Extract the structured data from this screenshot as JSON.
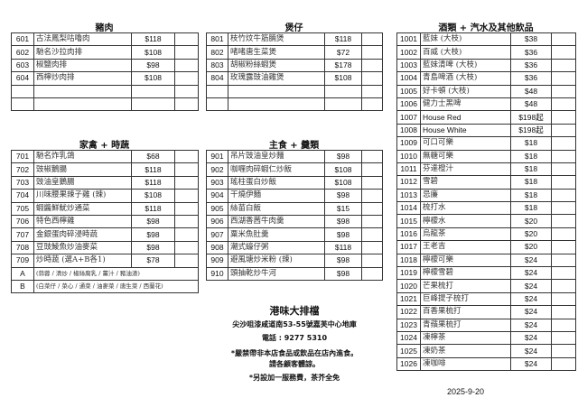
{
  "sections": [
    {
      "title": "豬肉",
      "items": [
        {
          "code": "601",
          "name": "古法鳳梨咕嚕肉",
          "price": "$118"
        },
        {
          "code": "602",
          "name": "馳名沙拉肉排",
          "price": "$108"
        },
        {
          "code": "603",
          "name": "椒鹽肉排",
          "price": "$98"
        },
        {
          "code": "604",
          "name": "西檸炒肉排",
          "price": "$108"
        },
        {
          "code": "",
          "name": "",
          "price": ""
        },
        {
          "code": "",
          "name": "",
          "price": ""
        }
      ]
    },
    {
      "title": "煲仔",
      "items": [
        {
          "code": "801",
          "name": "枝竹炆牛筋腩煲",
          "price": "$118"
        },
        {
          "code": "802",
          "name": "啫啫唐生菜煲",
          "price": "$72"
        },
        {
          "code": "803",
          "name": "胡椒粉絲蝦煲",
          "price": "$178"
        },
        {
          "code": "804",
          "name": "玫瑰露豉油雞煲",
          "price": "$108"
        },
        {
          "code": "",
          "name": "",
          "price": ""
        },
        {
          "code": "",
          "name": "",
          "price": ""
        }
      ]
    },
    {
      "title": "酒類 + 汽水及其他飲品",
      "items": [
        {
          "code": "1001",
          "name": "藍妹 (大枝)",
          "price": "$38"
        },
        {
          "code": "1002",
          "name": "百威 (大枝)",
          "price": "$36"
        },
        {
          "code": "1003",
          "name": "藍妹清啤 (大枝)",
          "price": "$36"
        },
        {
          "code": "1004",
          "name": "青島啤酒 (大枝)",
          "price": "$36"
        },
        {
          "code": "1005",
          "name": "好卡頓 (大枝)",
          "price": "$48"
        },
        {
          "code": "1006",
          "name": "健力士黑啤",
          "price": "$48"
        },
        {
          "code": "1007",
          "name": "House Red",
          "price": "$198起"
        },
        {
          "code": "1008",
          "name": "House White",
          "price": "$198起"
        },
        {
          "code": "1009",
          "name": "可口可樂",
          "price": "$18"
        },
        {
          "code": "1010",
          "name": "無糖可樂",
          "price": "$18"
        },
        {
          "code": "1011",
          "name": "芬達橙汁",
          "price": "$18"
        },
        {
          "code": "1012",
          "name": "雪碧",
          "price": "$18"
        },
        {
          "code": "1013",
          "name": "忌廉",
          "price": "$18"
        },
        {
          "code": "1014",
          "name": "梳打水",
          "price": "$18"
        },
        {
          "code": "1015",
          "name": "檸檬水",
          "price": "$20"
        },
        {
          "code": "1016",
          "name": "烏龍茶",
          "price": "$20"
        },
        {
          "code": "1017",
          "name": "王老吉",
          "price": "$20"
        },
        {
          "code": "1018",
          "name": "檸檬可樂",
          "price": "$24"
        },
        {
          "code": "1019",
          "name": "檸檬雪碧",
          "price": "$24"
        },
        {
          "code": "1020",
          "name": "芒果梳打",
          "price": "$24"
        },
        {
          "code": "1021",
          "name": "巨峰提子梳打",
          "price": "$24"
        },
        {
          "code": "1022",
          "name": "百香果梳打",
          "price": "$24"
        },
        {
          "code": "1023",
          "name": "青蘋果梳打",
          "price": "$24"
        },
        {
          "code": "1024",
          "name": "凍檸茶",
          "price": "$24"
        },
        {
          "code": "1025",
          "name": "凍奶茶",
          "price": "$24"
        },
        {
          "code": "1026",
          "name": "凍咖啡",
          "price": "$24"
        }
      ]
    },
    {
      "title": "家禽 + 時蔬",
      "items": [
        {
          "code": "701",
          "name": "馳名炸乳鴿",
          "price": "$68"
        },
        {
          "code": "702",
          "name": "豉椒鵝腸",
          "price": "$118"
        },
        {
          "code": "703",
          "name": "豉油皇鵝腸",
          "price": "$118"
        },
        {
          "code": "704",
          "name": "川味腰果辣子雞 (辣)",
          "price": "$108"
        },
        {
          "code": "705",
          "name": "蝦醬鮮魷炒通菜",
          "price": "$118"
        },
        {
          "code": "706",
          "name": "特色西檸雞",
          "price": "$98"
        },
        {
          "code": "707",
          "name": "金銀蛋肉碎浸時蔬",
          "price": "$98"
        },
        {
          "code": "708",
          "name": "豆豉鯪魚炒油麥菜",
          "price": "$98"
        },
        {
          "code": "709",
          "name": "炒時蔬 (選A+B各1)",
          "price": "$78"
        }
      ],
      "options": [
        {
          "code": "A",
          "text": "(蒜蓉 / 清炒 / 椒絲腐乳 / 薑汁 / 豬油渣)"
        },
        {
          "code": "B",
          "text": "(白菜仔 / 菜心 / 通菜 / 油麥菜 / 唐生菜 / 西蘭花)"
        }
      ]
    },
    {
      "title": "主食 + 羹類",
      "items": [
        {
          "code": "901",
          "name": "吊片豉油皇炒麵",
          "price": "$98"
        },
        {
          "code": "902",
          "name": "咖喱肉碎蝦仁炒飯",
          "price": "$108"
        },
        {
          "code": "903",
          "name": "瑤柱蛋白炒飯",
          "price": "$108"
        },
        {
          "code": "904",
          "name": "干燒伊麵",
          "price": "$98"
        },
        {
          "code": "905",
          "name": "絲苗白飯",
          "price": "$15"
        },
        {
          "code": "906",
          "name": "西湖香茜牛肉羹",
          "price": "$98"
        },
        {
          "code": "907",
          "name": "粟米魚肚羹",
          "price": "$98"
        },
        {
          "code": "908",
          "name": "潮式蠔仔粥",
          "price": "$118"
        },
        {
          "code": "909",
          "name": "避風塘炒米粉 (辣)",
          "price": "$98"
        },
        {
          "code": "910",
          "name": "頭抽乾炒牛河",
          "price": "$98"
        }
      ]
    }
  ],
  "footer": {
    "restaurant": "港味大排檔",
    "address": "尖沙咀漆咸道南53-55號嘉芙中心地庫",
    "phone": "電話 : 9277 5310",
    "note1": "*嚴禁帶非本店食品或飲品在店內進食。",
    "note2": "請各顧客體諒。",
    "note3": "*另設加一服務費，茶芥全免"
  },
  "date": "2025-9-20"
}
